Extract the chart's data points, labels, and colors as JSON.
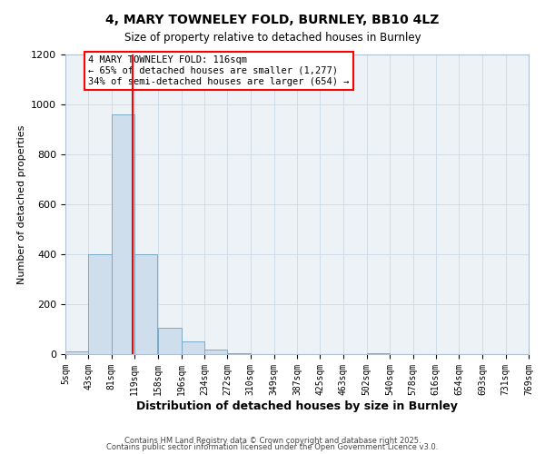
{
  "title": "4, MARY TOWNELEY FOLD, BURNLEY, BB10 4LZ",
  "subtitle": "Size of property relative to detached houses in Burnley",
  "xlabel": "Distribution of detached houses by size in Burnley",
  "ylabel": "Number of detached properties",
  "bar_left_edges": [
    5,
    43,
    81,
    119,
    158,
    196,
    234,
    272,
    310,
    349,
    387,
    425,
    463,
    502,
    540,
    578,
    616,
    654,
    693,
    731
  ],
  "bar_heights": [
    10,
    400,
    960,
    400,
    105,
    50,
    18,
    3,
    0,
    0,
    0,
    0,
    0,
    3,
    0,
    0,
    0,
    0,
    0,
    0
  ],
  "bin_width": 38,
  "bar_color": "#cfdeed",
  "bar_edge_color": "#7aaac8",
  "property_line_x": 116,
  "property_line_color": "red",
  "ylim": [
    0,
    1200
  ],
  "yticks": [
    0,
    200,
    400,
    600,
    800,
    1000,
    1200
  ],
  "xtick_labels": [
    "5sqm",
    "43sqm",
    "81sqm",
    "119sqm",
    "158sqm",
    "196sqm",
    "234sqm",
    "272sqm",
    "310sqm",
    "349sqm",
    "387sqm",
    "425sqm",
    "463sqm",
    "502sqm",
    "540sqm",
    "578sqm",
    "616sqm",
    "654sqm",
    "693sqm",
    "731sqm",
    "769sqm"
  ],
  "annotation_box_text": "4 MARY TOWNELEY FOLD: 116sqm\n← 65% of detached houses are smaller (1,277)\n34% of semi-detached houses are larger (654) →",
  "grid_color": "#d0dce8",
  "background_color": "#edf2f7",
  "footer1": "Contains HM Land Registry data © Crown copyright and database right 2025.",
  "footer2": "Contains public sector information licensed under the Open Government Licence v3.0."
}
